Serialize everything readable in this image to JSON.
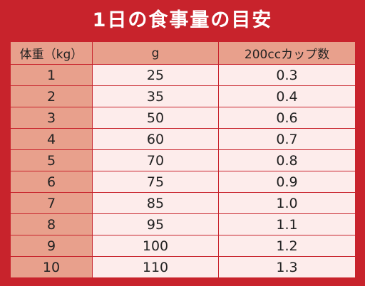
{
  "title": "1日の食事量の目安",
  "headers": [
    "体重（kg）",
    "g",
    "200ccカップ数"
  ],
  "rows": [
    {
      "weight": "1",
      "grams": "25",
      "cups": "0.3"
    },
    {
      "weight": "2",
      "grams": "35",
      "cups": "0.4"
    },
    {
      "weight": "3",
      "grams": "50",
      "cups": "0.6"
    },
    {
      "weight": "4",
      "grams": "60",
      "cups": "0.7"
    },
    {
      "weight": "5",
      "grams": "70",
      "cups": "0.8"
    },
    {
      "weight": "6",
      "grams": "75",
      "cups": "0.9"
    },
    {
      "weight": "7",
      "grams": "85",
      "cups": "1.0"
    },
    {
      "weight": "8",
      "grams": "95",
      "cups": "1.1"
    },
    {
      "weight": "9",
      "grams": "100",
      "cups": "1.2"
    },
    {
      "weight": "10",
      "grams": "110",
      "cups": "1.3"
    }
  ],
  "colors": {
    "background": "#c8232c",
    "header_cell": "#e8a08c",
    "value_cell": "#fdeceb",
    "title_text": "#ffffff"
  }
}
